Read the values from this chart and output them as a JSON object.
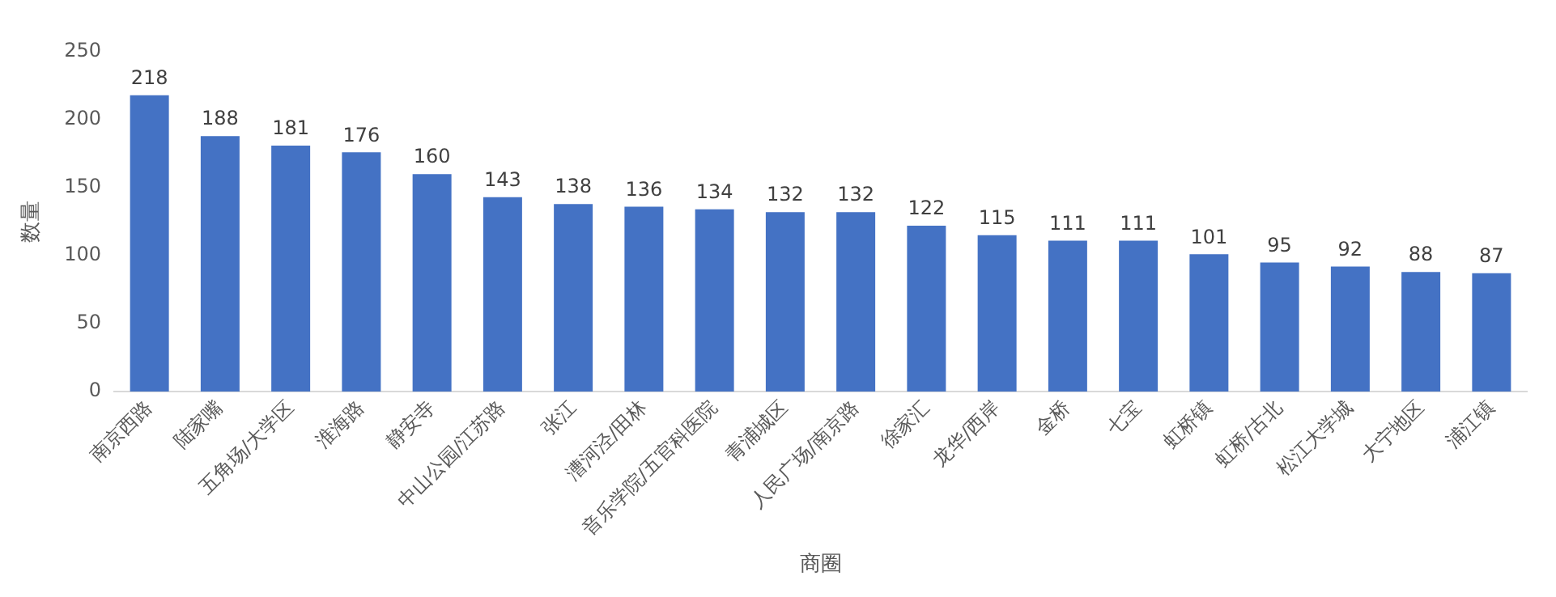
{
  "chart_data": {
    "type": "bar",
    "xlabel": "商圈",
    "ylabel": "数量",
    "categories": [
      "南京西路",
      "陆家嘴",
      "五角场/大学区",
      "淮海路",
      "静安寺",
      "中山公园/江苏路",
      "张江",
      "漕河泾/田林",
      "音乐学院/五官科医院",
      "青浦城区",
      "人民广场/南京路",
      "徐家汇",
      "龙华/西岸",
      "金桥",
      "七宝",
      "虹桥镇",
      "虹桥/古北",
      "松江大学城",
      "大宁地区",
      "浦江镇"
    ],
    "values": [
      218,
      188,
      181,
      176,
      160,
      143,
      138,
      136,
      134,
      132,
      132,
      122,
      115,
      111,
      111,
      101,
      95,
      92,
      88,
      87
    ],
    "color": "#4472c4",
    "ylim": [
      0,
      250
    ],
    "yticks": [
      0,
      50,
      100,
      150,
      200,
      250
    ],
    "grid": false,
    "data_labels": true
  }
}
